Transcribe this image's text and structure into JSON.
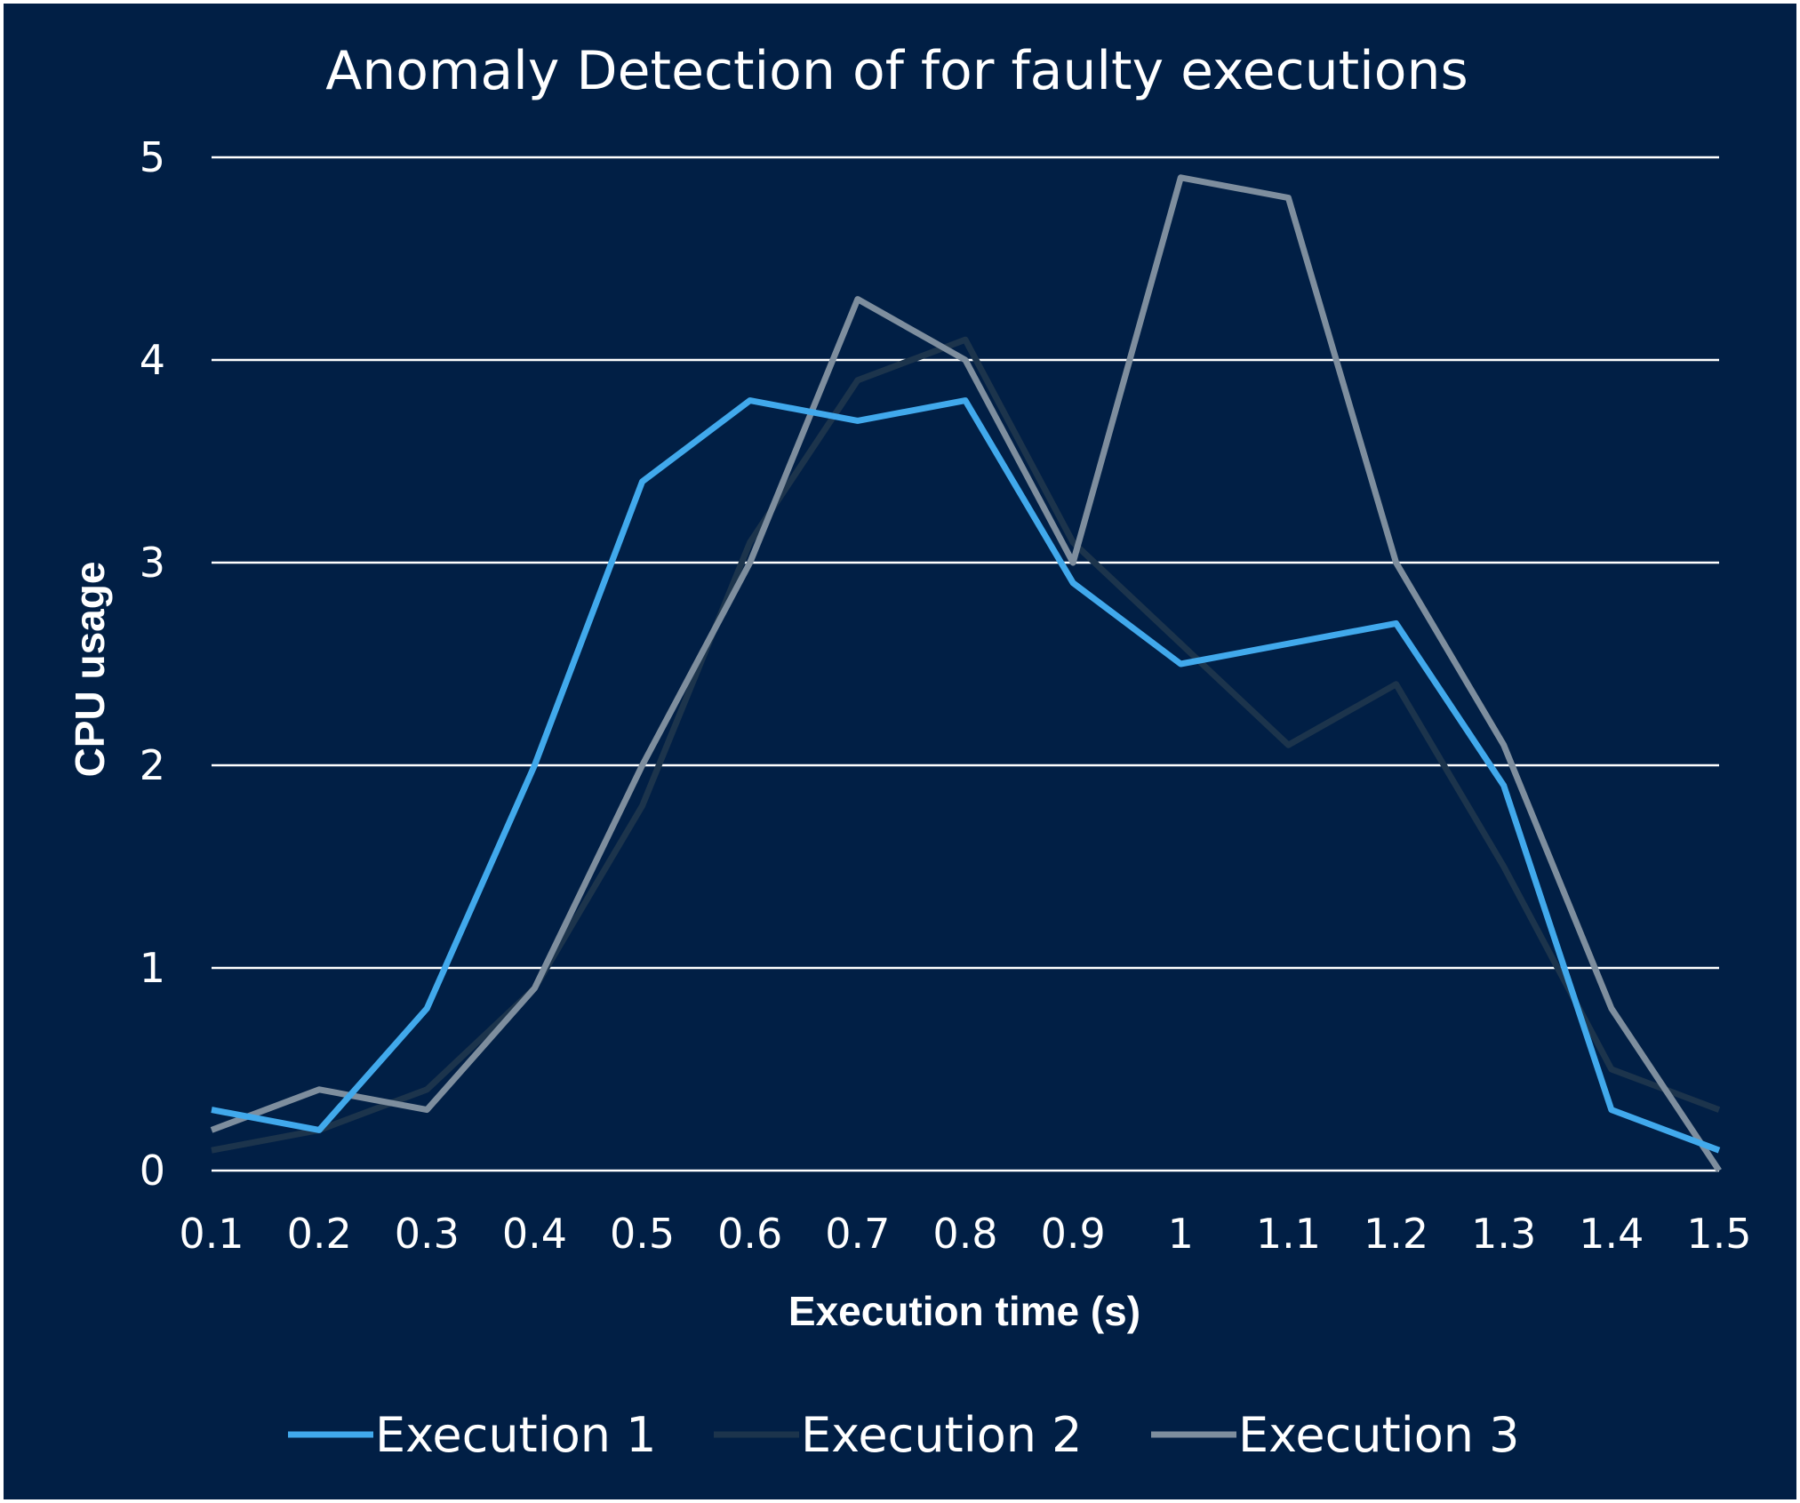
{
  "chart_data": {
    "type": "line",
    "title": "Anomaly Detection of for faulty executions",
    "xlabel": "Execution time (s)",
    "ylabel": "CPU usage",
    "categories": [
      "0.1",
      "0.2",
      "0.3",
      "0.4",
      "0.5",
      "0.6",
      "0.7",
      "0.8",
      "0.9",
      "1",
      "1.1",
      "1.2",
      "1.3",
      "1.4",
      "1.5"
    ],
    "yticks": [
      "0",
      "1",
      "2",
      "3",
      "4",
      "5"
    ],
    "ylim": [
      0,
      5
    ],
    "grid": true,
    "legend_position": "bottom",
    "background_color": "#011f45",
    "series": [
      {
        "name": "Execution 1",
        "color": "#41a9ec",
        "values": [
          0.3,
          0.2,
          0.8,
          2.0,
          3.4,
          3.8,
          3.7,
          3.8,
          2.9,
          2.5,
          2.6,
          2.7,
          1.9,
          0.3,
          0.1
        ]
      },
      {
        "name": "Execution 2",
        "color": "#1c344c",
        "values": [
          0.1,
          0.2,
          0.4,
          0.9,
          1.8,
          3.1,
          3.9,
          4.1,
          3.1,
          2.6,
          2.1,
          2.4,
          1.5,
          0.5,
          0.3
        ]
      },
      {
        "name": "Execution 3",
        "color": "#7e8e9e",
        "values": [
          0.2,
          0.4,
          0.3,
          0.9,
          2.0,
          3.0,
          4.3,
          4.0,
          3.0,
          4.9,
          4.8,
          3.0,
          2.1,
          0.8,
          0.0
        ]
      }
    ]
  }
}
